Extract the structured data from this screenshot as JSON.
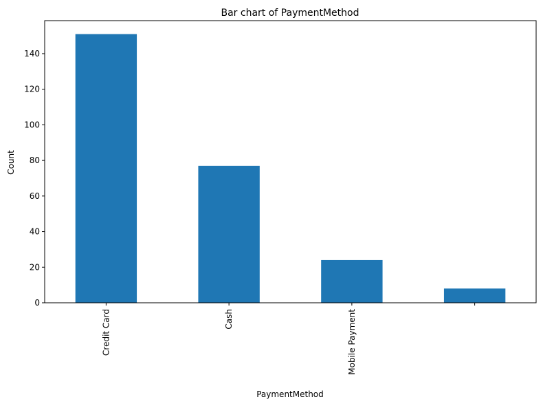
{
  "chart_data": {
    "type": "bar",
    "title": "Bar chart of PaymentMethod",
    "xlabel": "PaymentMethod",
    "ylabel": "Count",
    "categories": [
      "Credit Card",
      "Cash",
      "Mobile Payment",
      ""
    ],
    "values": [
      151,
      77,
      24,
      8
    ],
    "ylim": [
      0,
      158.55
    ],
    "yticks": [
      0,
      20,
      40,
      60,
      80,
      100,
      120,
      140
    ],
    "bar_color": "#1f77b4",
    "grid": false,
    "legend": "none"
  }
}
